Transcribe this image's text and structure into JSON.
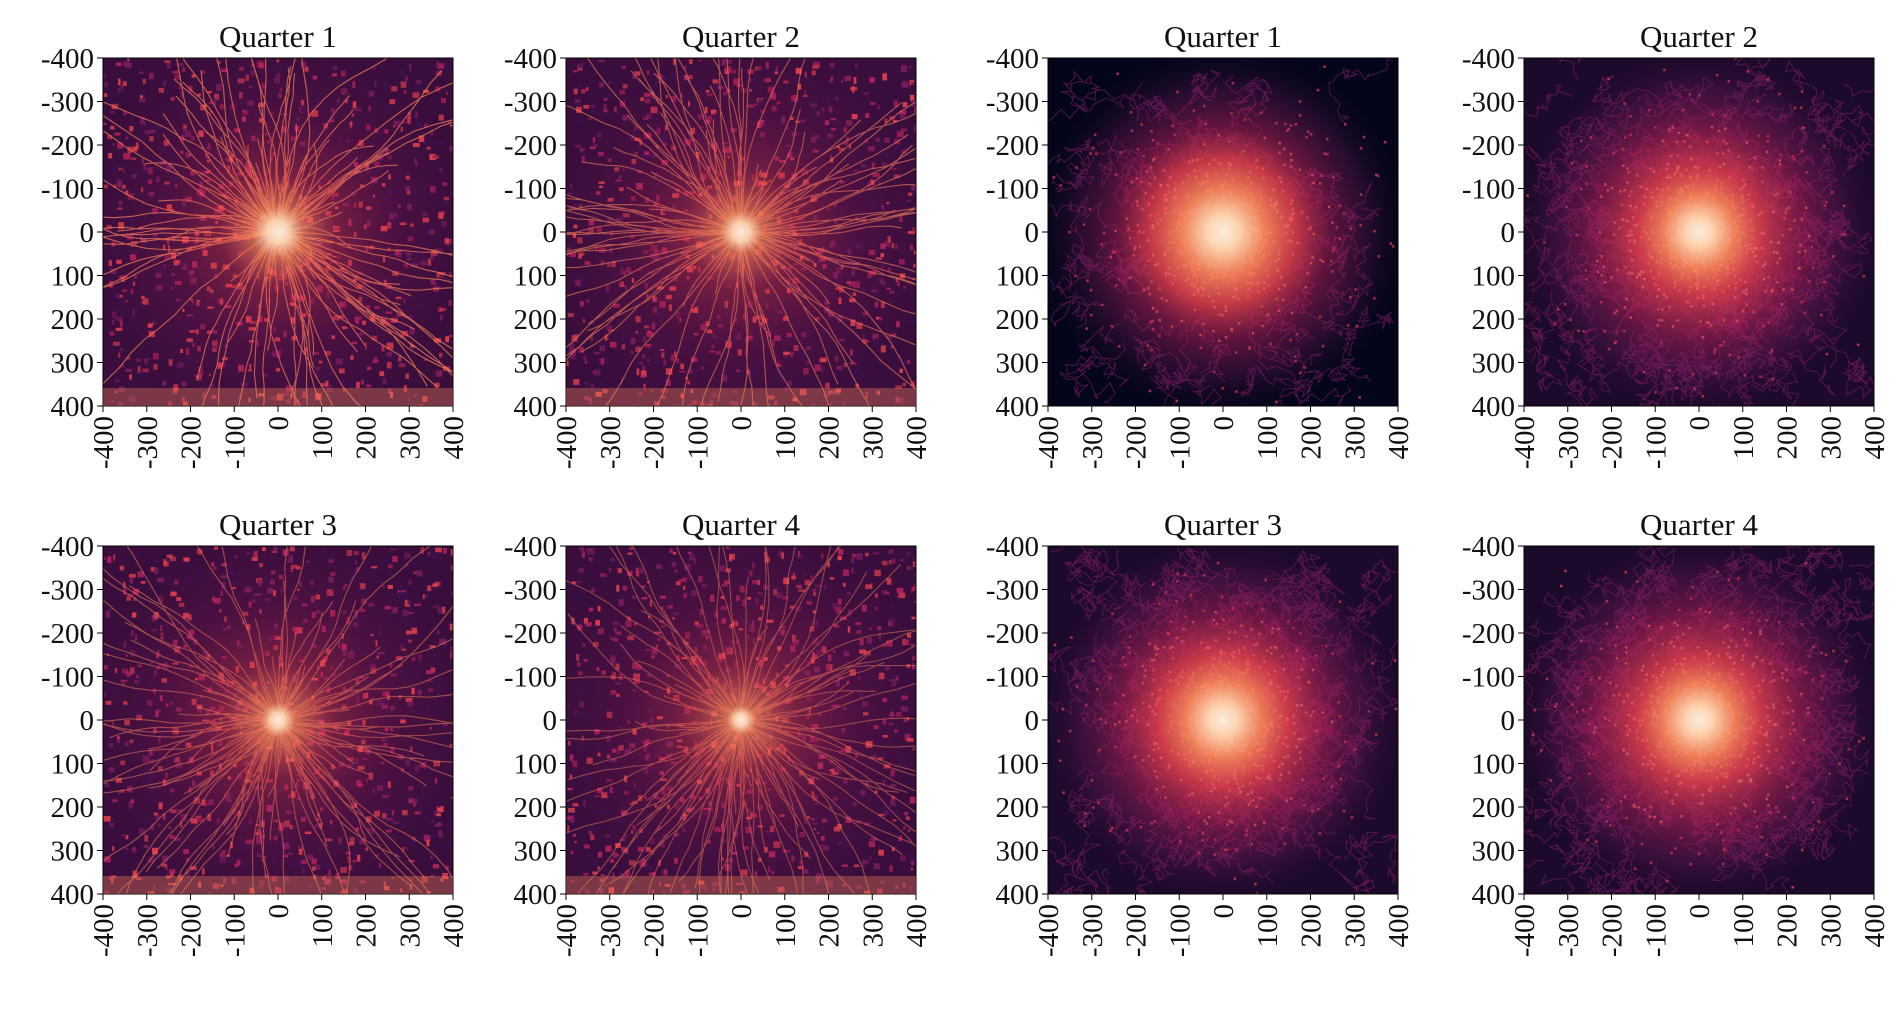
{
  "chart_data": [
    {
      "type": "heatmap",
      "pattern": "filaments",
      "seed": 11,
      "title": "Quarter 1",
      "xlim": [
        -400,
        400
      ],
      "ylim": [
        -400,
        400
      ],
      "x_ticks": [
        -400,
        -300,
        -200,
        -100,
        0,
        100,
        200,
        300,
        400
      ],
      "y_ticks": [
        -400,
        -300,
        -200,
        -100,
        0,
        100,
        200,
        300,
        400
      ],
      "center_intensity": 1.0,
      "colormap": [
        "#03051a",
        "#3b0f4f",
        "#7a1d5c",
        "#b0225a",
        "#e3414d",
        "#f7845a",
        "#fdd5b2",
        "#faebdd"
      ]
    },
    {
      "type": "heatmap",
      "pattern": "filaments",
      "seed": 22,
      "title": "Quarter 2",
      "xlim": [
        -400,
        400
      ],
      "ylim": [
        -400,
        400
      ],
      "x_ticks": [
        -400,
        -300,
        -200,
        -100,
        0,
        100,
        200,
        300,
        400
      ],
      "y_ticks": [
        -400,
        -300,
        -200,
        -100,
        0,
        100,
        200,
        300,
        400
      ],
      "center_intensity": 0.8,
      "colormap": [
        "#03051a",
        "#3b0f4f",
        "#7a1d5c",
        "#b0225a",
        "#e3414d",
        "#f7845a",
        "#fdd5b2",
        "#faebdd"
      ]
    },
    {
      "type": "heatmap",
      "pattern": "diffuse",
      "seed": 33,
      "title": "Quarter 1",
      "xlim": [
        -400,
        400
      ],
      "ylim": [
        -400,
        400
      ],
      "x_ticks": [
        -400,
        -300,
        -200,
        -100,
        0,
        100,
        200,
        300,
        400
      ],
      "y_ticks": [
        -400,
        -300,
        -200,
        -100,
        0,
        100,
        200,
        300,
        400
      ],
      "center_intensity": 1.0,
      "colormap": [
        "#03051a",
        "#3b0f4f",
        "#7a1d5c",
        "#b0225a",
        "#e3414d",
        "#f7845a",
        "#fdd5b2",
        "#faebdd"
      ]
    },
    {
      "type": "heatmap",
      "pattern": "diffuse",
      "seed": 44,
      "title": "Quarter 2",
      "xlim": [
        -400,
        400
      ],
      "ylim": [
        -400,
        400
      ],
      "x_ticks": [
        -400,
        -300,
        -200,
        -100,
        0,
        100,
        200,
        300,
        400
      ],
      "y_ticks": [
        -400,
        -300,
        -200,
        -100,
        0,
        100,
        200,
        300,
        400
      ],
      "center_intensity": 0.85,
      "colormap": [
        "#03051a",
        "#3b0f4f",
        "#7a1d5c",
        "#b0225a",
        "#e3414d",
        "#f7845a",
        "#fdd5b2",
        "#faebdd"
      ]
    },
    {
      "type": "heatmap",
      "pattern": "filaments",
      "seed": 55,
      "title": "Quarter 3",
      "xlim": [
        -400,
        400
      ],
      "ylim": [
        -400,
        400
      ],
      "x_ticks": [
        -400,
        -300,
        -200,
        -100,
        0,
        100,
        200,
        300,
        400
      ],
      "y_ticks": [
        -400,
        -300,
        -200,
        -100,
        0,
        100,
        200,
        300,
        400
      ],
      "center_intensity": 0.65,
      "colormap": [
        "#03051a",
        "#3b0f4f",
        "#7a1d5c",
        "#b0225a",
        "#e3414d",
        "#f7845a",
        "#fdd5b2",
        "#faebdd"
      ]
    },
    {
      "type": "heatmap",
      "pattern": "filaments",
      "seed": 66,
      "title": "Quarter 4",
      "xlim": [
        -400,
        400
      ],
      "ylim": [
        -400,
        400
      ],
      "x_ticks": [
        -400,
        -300,
        -200,
        -100,
        0,
        100,
        200,
        300,
        400
      ],
      "y_ticks": [
        -400,
        -300,
        -200,
        -100,
        0,
        100,
        200,
        300,
        400
      ],
      "center_intensity": 0.55,
      "colormap": [
        "#03051a",
        "#3b0f4f",
        "#7a1d5c",
        "#b0225a",
        "#e3414d",
        "#f7845a",
        "#fdd5b2",
        "#faebdd"
      ]
    },
    {
      "type": "heatmap",
      "pattern": "diffuse",
      "seed": 77,
      "title": "Quarter 3",
      "xlim": [
        -400,
        400
      ],
      "ylim": [
        -400,
        400
      ],
      "x_ticks": [
        -400,
        -300,
        -200,
        -100,
        0,
        100,
        200,
        300,
        400
      ],
      "y_ticks": [
        -400,
        -300,
        -200,
        -100,
        0,
        100,
        200,
        300,
        400
      ],
      "center_intensity": 0.9,
      "colormap": [
        "#03051a",
        "#3b0f4f",
        "#7a1d5c",
        "#b0225a",
        "#e3414d",
        "#f7845a",
        "#fdd5b2",
        "#faebdd"
      ]
    },
    {
      "type": "heatmap",
      "pattern": "diffuse",
      "seed": 88,
      "title": "Quarter 4",
      "xlim": [
        -400,
        400
      ],
      "ylim": [
        -400,
        400
      ],
      "x_ticks": [
        -400,
        -300,
        -200,
        -100,
        0,
        100,
        200,
        300,
        400
      ],
      "y_ticks": [
        -400,
        -300,
        -200,
        -100,
        0,
        100,
        200,
        300,
        400
      ],
      "center_intensity": 0.85,
      "colormap": [
        "#03051a",
        "#3b0f4f",
        "#7a1d5c",
        "#b0225a",
        "#e3414d",
        "#f7845a",
        "#fdd5b2",
        "#faebdd"
      ]
    }
  ]
}
